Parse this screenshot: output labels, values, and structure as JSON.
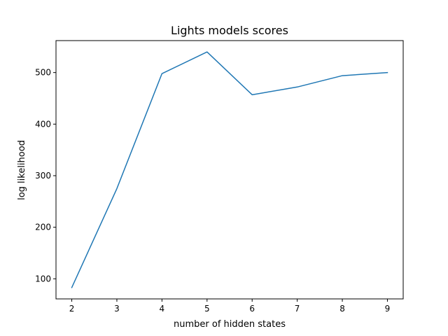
{
  "chart_data": {
    "type": "line",
    "title": "Lights models scores",
    "xlabel": "number of hidden states",
    "ylabel": "log likelihood",
    "x": [
      2,
      3,
      4,
      5,
      6,
      7,
      8,
      9
    ],
    "series": [
      {
        "values": [
          83,
          275,
          498,
          540,
          457,
          472,
          494,
          500
        ],
        "color": "#1f77b4"
      }
    ],
    "xlim": [
      1.65,
      9.35
    ],
    "ylim": [
      61,
      562
    ],
    "xticks": [
      2,
      3,
      4,
      5,
      6,
      7,
      8,
      9
    ],
    "yticks": [
      100,
      200,
      300,
      400,
      500
    ],
    "xtick_labels": [
      "2",
      "3",
      "4",
      "5",
      "6",
      "7",
      "8",
      "9"
    ],
    "ytick_labels": [
      "100",
      "200",
      "300",
      "400",
      "500"
    ],
    "grid": false,
    "legend": "none"
  }
}
